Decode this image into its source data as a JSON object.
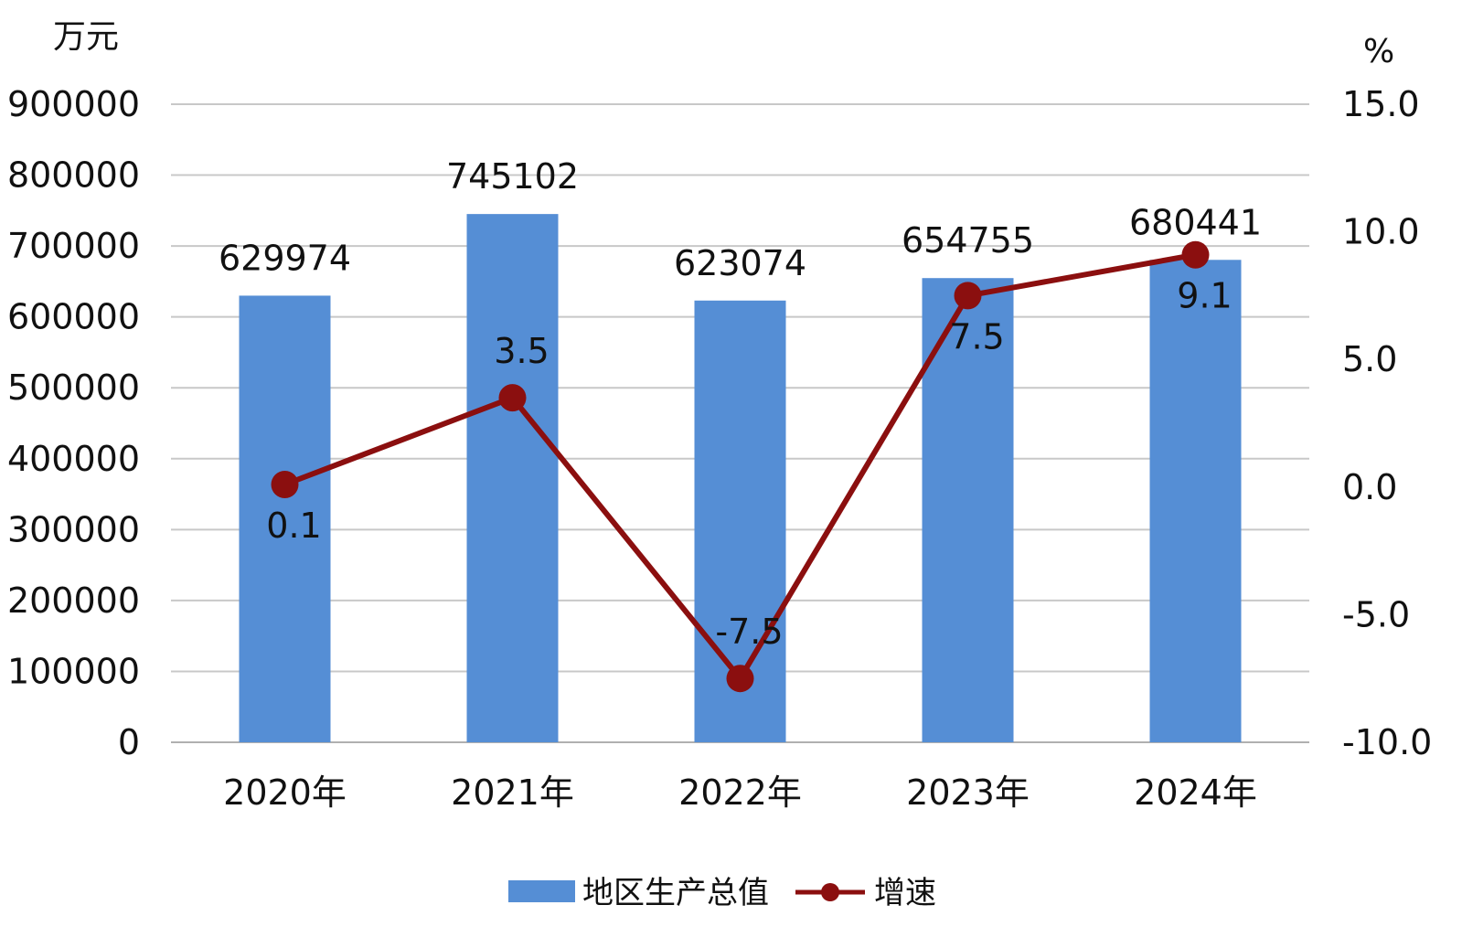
{
  "chart_data": {
    "type": "bar",
    "title": "",
    "categories": [
      "2020年",
      "2021年",
      "2022年",
      "2023年",
      "2024年"
    ],
    "series": [
      {
        "name": "地区生产总值",
        "type": "bar",
        "axis": "left",
        "color": "#558ed5",
        "values": [
          629974,
          745102,
          623074,
          654755,
          680441
        ],
        "labels": [
          "629974",
          "745102",
          "623074",
          "654755",
          "680441"
        ]
      },
      {
        "name": "增速",
        "type": "line",
        "axis": "right",
        "color": "#8b0f0f",
        "values": [
          0.1,
          3.5,
          -7.5,
          7.5,
          9.1
        ],
        "labels": [
          "0.1",
          "3.5",
          "-7.5",
          "7.5",
          "9.1"
        ]
      }
    ],
    "y_left": {
      "unit": "万元",
      "ylim": [
        0,
        900000
      ],
      "ticks": [
        "0",
        "100000",
        "200000",
        "300000",
        "400000",
        "500000",
        "600000",
        "700000",
        "800000",
        "900000"
      ]
    },
    "y_right": {
      "unit": "%",
      "ylim": [
        -10,
        15
      ],
      "ticks": [
        "-10.0",
        "-5.0",
        "0.0",
        "5.0",
        "10.0",
        "15.0"
      ]
    },
    "grid": true,
    "legend": "bottom-center"
  }
}
